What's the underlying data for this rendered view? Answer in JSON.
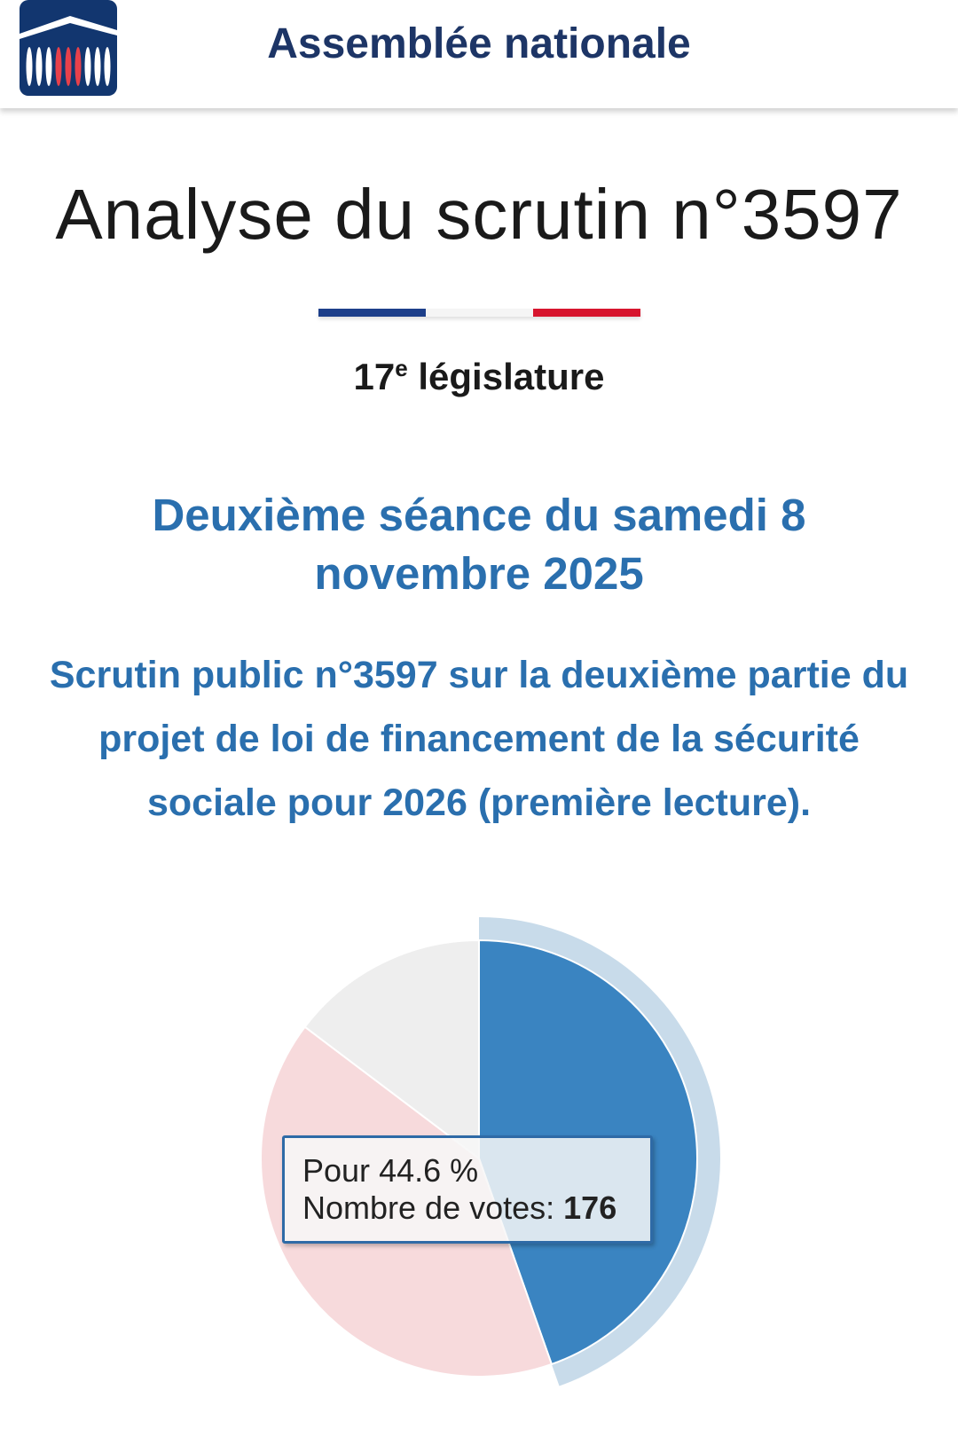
{
  "header": {
    "title": "Assemblée nationale",
    "logo_icon": "assemblee-nationale-logo"
  },
  "page_title": "Analyse du scrutin n°3597",
  "flag_colors": [
    "#1d3f8a",
    "#f5f5f5",
    "#d7152e"
  ],
  "legislature": {
    "number": "17",
    "sup": "e",
    "label": "législature"
  },
  "seance": "Deuxième séance du samedi 8 novembre 2025",
  "description": "Scrutin public n°3597 sur la deuxième partie du projet de loi de financement de la sécurité sociale pour 2026 (première lecture).",
  "chart_data": {
    "type": "pie",
    "slices": [
      {
        "name": "Pour",
        "percent": 44.6,
        "votes": 176,
        "color": "#3a84c1",
        "highlighted": true
      },
      {
        "percent": 40.7,
        "color": "#f7dadc"
      },
      {
        "percent": 14.7,
        "color": "#eeeeee"
      }
    ],
    "start": "top, clockwise"
  },
  "tooltip": {
    "label": "Pour",
    "percent": "44.6 %",
    "votes_label": "Nombre de votes:",
    "votes": "176"
  }
}
